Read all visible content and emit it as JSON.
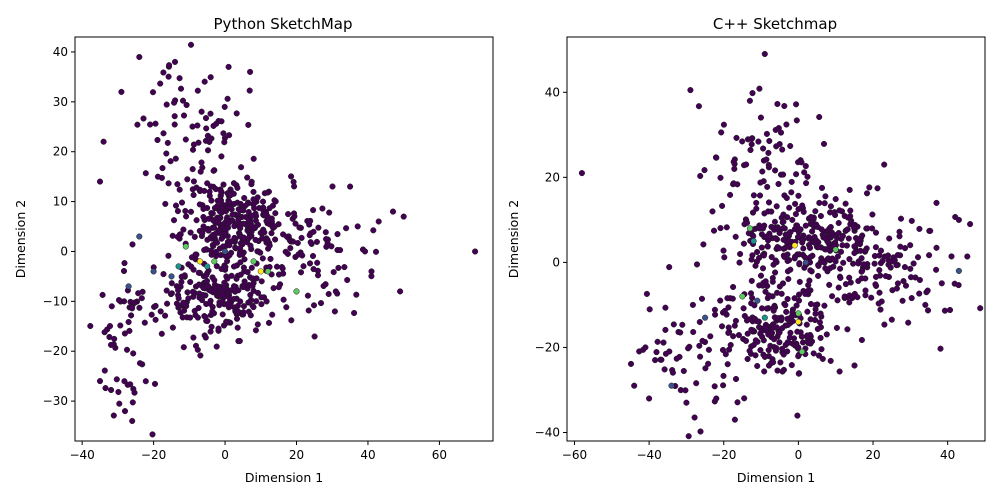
{
  "chart_data": [
    {
      "type": "scatter",
      "title": "Python SketchMap",
      "xlabel": "Dimension 1",
      "ylabel": "Dimension 2",
      "xlim": [
        -42,
        75
      ],
      "ylim": [
        -38,
        43
      ],
      "xticks": [
        -40,
        -20,
        0,
        20,
        40,
        60
      ],
      "yticks": [
        -30,
        -20,
        -10,
        0,
        10,
        20,
        30,
        40
      ],
      "grid": false,
      "legend": "none",
      "colormap": [
        "#440154",
        "#3b528b",
        "#21918c",
        "#5ec962",
        "#fde725"
      ],
      "clusters": [
        {
          "center": [
            3,
            6
          ],
          "spread": [
            7,
            4
          ],
          "n": 280,
          "seed": 11
        },
        {
          "center": [
            -3,
            -9
          ],
          "spread": [
            8,
            4
          ],
          "n": 230,
          "seed": 23
        },
        {
          "center": [
            -8,
            22
          ],
          "spread": [
            7,
            8
          ],
          "n": 90,
          "seed": 37
        },
        {
          "center": [
            -26,
            -18
          ],
          "spread": [
            5,
            8
          ],
          "n": 55,
          "seed": 41
        },
        {
          "center": [
            24,
            0
          ],
          "spread": [
            9,
            6
          ],
          "n": 90,
          "seed": 53
        }
      ],
      "highlight_points": [
        {
          "x": -24,
          "y": 3,
          "c": 1
        },
        {
          "x": -27,
          "y": -7,
          "c": 1
        },
        {
          "x": -15,
          "y": -5,
          "c": 1
        },
        {
          "x": -11,
          "y": 1,
          "c": 3
        },
        {
          "x": -7,
          "y": -2,
          "c": 4
        },
        {
          "x": -5,
          "y": -3,
          "c": 2
        },
        {
          "x": -3,
          "y": -2,
          "c": 3
        },
        {
          "x": 0,
          "y": 0,
          "c": 1
        },
        {
          "x": 8,
          "y": -2,
          "c": 3
        },
        {
          "x": 10,
          "y": -4,
          "c": 4
        },
        {
          "x": 12,
          "y": -4,
          "c": 3
        },
        {
          "x": 20,
          "y": -8,
          "c": 3
        },
        {
          "x": -13,
          "y": -3,
          "c": 2
        },
        {
          "x": -20,
          "y": -4,
          "c": 1
        }
      ],
      "outliers": [
        {
          "x": 70,
          "y": 0
        },
        {
          "x": 49,
          "y": -8
        },
        {
          "x": 50,
          "y": 7
        },
        {
          "x": 47,
          "y": 8
        },
        {
          "x": 43,
          "y": 6
        },
        {
          "x": 41,
          "y": -4
        },
        {
          "x": -24,
          "y": 39
        },
        {
          "x": -14,
          "y": 38
        },
        {
          "x": 1,
          "y": 37
        },
        {
          "x": 7,
          "y": 36
        },
        {
          "x": -29,
          "y": 32
        },
        {
          "x": -26,
          "y": -34
        },
        {
          "x": -28,
          "y": -32
        },
        {
          "x": -35,
          "y": -26
        },
        {
          "x": 35,
          "y": 13
        },
        {
          "x": 31,
          "y": -8
        },
        {
          "x": -35,
          "y": 14
        },
        {
          "x": -34,
          "y": 22
        }
      ]
    },
    {
      "type": "scatter",
      "title": "C++ Sketchmap",
      "xlabel": "Dimension 1",
      "ylabel": "Dimension 2",
      "xlim": [
        -62,
        50
      ],
      "ylim": [
        -42,
        53
      ],
      "xticks": [
        -60,
        -40,
        -20,
        0,
        20,
        40
      ],
      "yticks": [
        -40,
        -20,
        0,
        20,
        40
      ],
      "grid": false,
      "legend": "none",
      "colormap": [
        "#440154",
        "#3b528b",
        "#21918c",
        "#5ec962",
        "#fde725"
      ],
      "clusters": [
        {
          "center": [
            2,
            6
          ],
          "spread": [
            10,
            5
          ],
          "n": 290,
          "seed": 101
        },
        {
          "center": [
            -5,
            -15
          ],
          "spread": [
            8,
            6
          ],
          "n": 220,
          "seed": 113
        },
        {
          "center": [
            -10,
            25
          ],
          "spread": [
            8,
            7
          ],
          "n": 70,
          "seed": 127
        },
        {
          "center": [
            -30,
            -20
          ],
          "spread": [
            9,
            8
          ],
          "n": 60,
          "seed": 131
        },
        {
          "center": [
            25,
            -2
          ],
          "spread": [
            10,
            6
          ],
          "n": 110,
          "seed": 139
        }
      ],
      "highlight_points": [
        {
          "x": -13,
          "y": 8,
          "c": 3
        },
        {
          "x": -12,
          "y": 5,
          "c": 2
        },
        {
          "x": -15,
          "y": -8,
          "c": 3
        },
        {
          "x": -11,
          "y": -9,
          "c": 1
        },
        {
          "x": -9,
          "y": -13,
          "c": 2
        },
        {
          "x": 0,
          "y": -12,
          "c": 3
        },
        {
          "x": 0,
          "y": -14,
          "c": 4
        },
        {
          "x": 1,
          "y": -21,
          "c": 3
        },
        {
          "x": 10,
          "y": 3,
          "c": 3
        },
        {
          "x": 2,
          "y": 0,
          "c": 1
        },
        {
          "x": -1,
          "y": 4,
          "c": 4
        },
        {
          "x": 43,
          "y": -2,
          "c": 1
        },
        {
          "x": -25,
          "y": -13,
          "c": 1
        },
        {
          "x": -34,
          "y": -29,
          "c": 1
        }
      ],
      "outliers": [
        {
          "x": -58,
          "y": 21
        },
        {
          "x": -9,
          "y": 49
        },
        {
          "x": 46,
          "y": 9
        },
        {
          "x": 43,
          "y": 10
        },
        {
          "x": -13,
          "y": 38
        },
        {
          "x": -44,
          "y": -29
        },
        {
          "x": -40,
          "y": -32
        },
        {
          "x": -41,
          "y": -20
        },
        {
          "x": -17,
          "y": -37
        },
        {
          "x": -22,
          "y": -32
        },
        {
          "x": 23,
          "y": 23
        },
        {
          "x": 37,
          "y": 14
        },
        {
          "x": 34,
          "y": -10
        },
        {
          "x": -30,
          "y": -33
        }
      ]
    }
  ]
}
